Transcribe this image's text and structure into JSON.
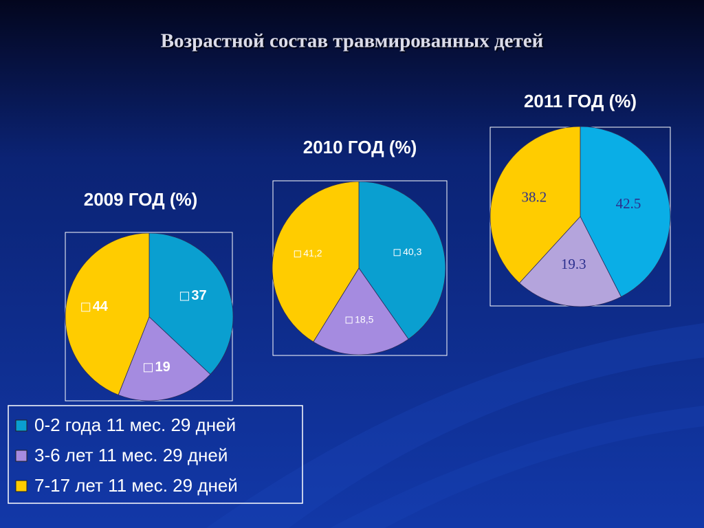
{
  "title": "Возрастной состав травмированных детей",
  "chart_data": [
    {
      "type": "pie",
      "title": "2009 ГОД (%)",
      "categories": [
        "0-2 года 11 мес. 29 дней",
        "3-6 лет 11 мес. 29 дней",
        "7-17 лет 11 мес. 29 дней"
      ],
      "values": [
        37,
        19,
        44
      ],
      "colors": [
        "#0a9fd0",
        "#a58be0",
        "#ffcc00"
      ],
      "legend": true
    },
    {
      "type": "pie",
      "title": "2010 ГОД (%)",
      "categories": [
        "0-2 года 11 мес. 29 дней",
        "3-6 лет 11 мес. 29 дней",
        "7-17 лет 11 мес. 29 дней"
      ],
      "values": [
        40.3,
        18.5,
        41.2
      ],
      "value_labels": [
        "40,3",
        "18,5",
        "41,2"
      ],
      "colors": [
        "#0a9fd0",
        "#a58be0",
        "#ffcc00"
      ]
    },
    {
      "type": "pie",
      "title": "2011 ГОД (%)",
      "categories": [
        "0-2 года 11 мес. 29 дней",
        "3-6 лет 11 мес. 29 дней",
        "7-17 лет 11 мес. 29 дней"
      ],
      "values": [
        42.5,
        19.3,
        38.2
      ],
      "colors": [
        "#0aaee6",
        "#b4a4dc",
        "#ffcc00"
      ]
    }
  ]
}
